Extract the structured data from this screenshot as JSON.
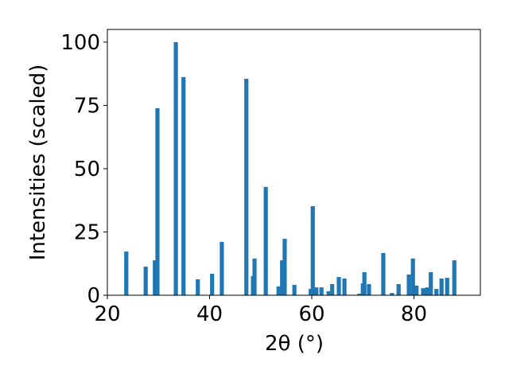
{
  "chart_data": {
    "type": "bar",
    "xlabel": "2θ (°)",
    "ylabel": "Intensities (scaled)",
    "x": [
      23.7,
      27.5,
      29.3,
      29.8,
      33.4,
      34.9,
      37.7,
      40.5,
      42.4,
      47.2,
      48.5,
      48.8,
      51.0,
      53.5,
      54.2,
      54.7,
      56.6,
      59.8,
      60.2,
      60.9,
      61.9,
      63.3,
      64.0,
      65.3,
      66.4,
      69.3,
      70.0,
      70.3,
      71.2,
      74.0,
      75.7,
      77.0,
      79.0,
      79.8,
      80.5,
      81.8,
      82.6,
      83.3,
      84.4,
      85.4,
      86.5,
      87.9
    ],
    "values": [
      17.3,
      11.3,
      13.8,
      73.9,
      100,
      86.2,
      6.3,
      8.5,
      21.1,
      85.5,
      7.5,
      14.5,
      42.8,
      3.5,
      13.8,
      22.3,
      4.1,
      2.5,
      35.2,
      3.1,
      3.1,
      1.6,
      4.4,
      7.2,
      6.6,
      0.6,
      4.7,
      9.1,
      4.4,
      16.7,
      0.9,
      4.4,
      8.2,
      14.5,
      3.8,
      2.8,
      3.1,
      9.1,
      2.5,
      6.6,
      6.9,
      13.8
    ],
    "color": "#1f77b4",
    "xlim": [
      20,
      93
    ],
    "xticks": [
      20,
      40,
      60,
      80
    ],
    "ylim": [
      0,
      105
    ],
    "yticks": [
      0,
      25,
      50,
      75,
      100
    ]
  }
}
